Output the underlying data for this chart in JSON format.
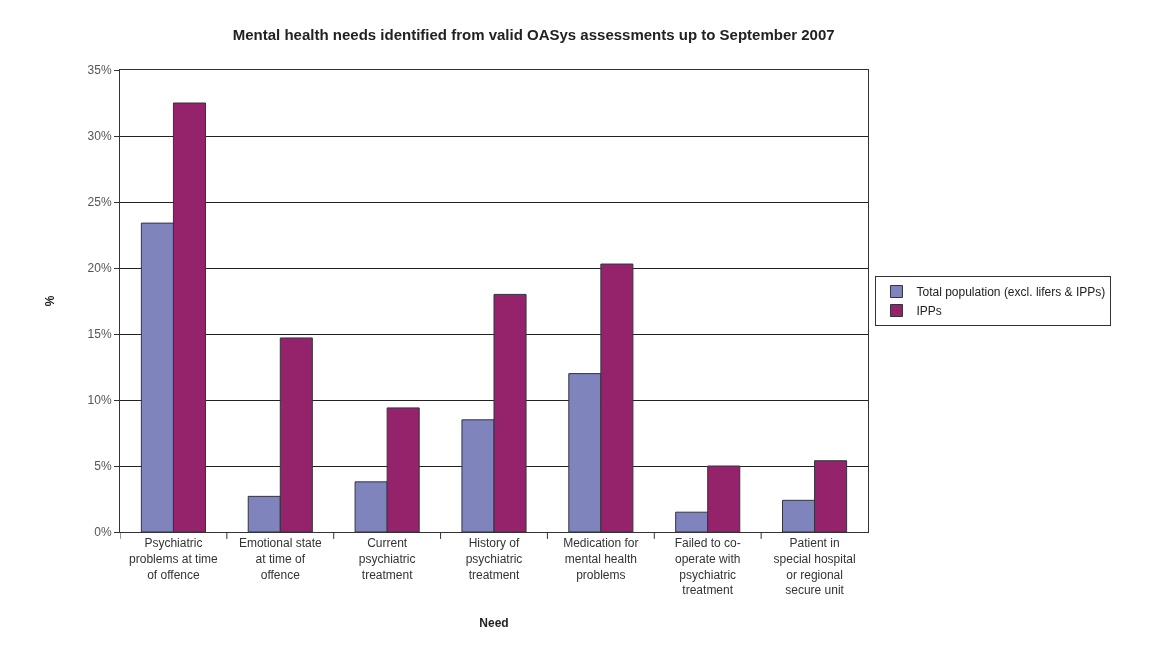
{
  "chart_data": {
    "type": "bar",
    "title": "Mental health needs identified from valid OASys assessments up to September 2007",
    "xlabel": "Need",
    "ylabel": "%",
    "categories": [
      "Psychiatric problems at time of offence",
      "Emotional state at time of offence",
      "Current psychiatric treatment",
      "History of psychiatric treatment",
      "Medication for mental health problems",
      "Failed to co-operate with psychiatric treatment",
      "Patient in special hospital or regional secure unit"
    ],
    "series": [
      {
        "name": "Total population (excl. lifers & IPPs)",
        "color": "#7f84bd",
        "values": [
          23.4,
          2.7,
          3.8,
          8.5,
          12.0,
          1.5,
          2.4
        ]
      },
      {
        "name": "IPPs",
        "color": "#95236b",
        "values": [
          32.5,
          14.7,
          9.4,
          18.0,
          20.3,
          5.0,
          5.4
        ]
      }
    ],
    "ylim": [
      0,
      35
    ],
    "yticks": [
      {
        "value": 0,
        "label": "0%"
      },
      {
        "value": 5,
        "label": "5%"
      },
      {
        "value": 10,
        "label": "10%"
      },
      {
        "value": 15,
        "label": "15%"
      },
      {
        "value": 20,
        "label": "20%"
      },
      {
        "value": 25,
        "label": "25%"
      },
      {
        "value": 30,
        "label": "30%"
      },
      {
        "value": 35,
        "label": "35%"
      }
    ],
    "grid": "y",
    "legend": "right"
  }
}
